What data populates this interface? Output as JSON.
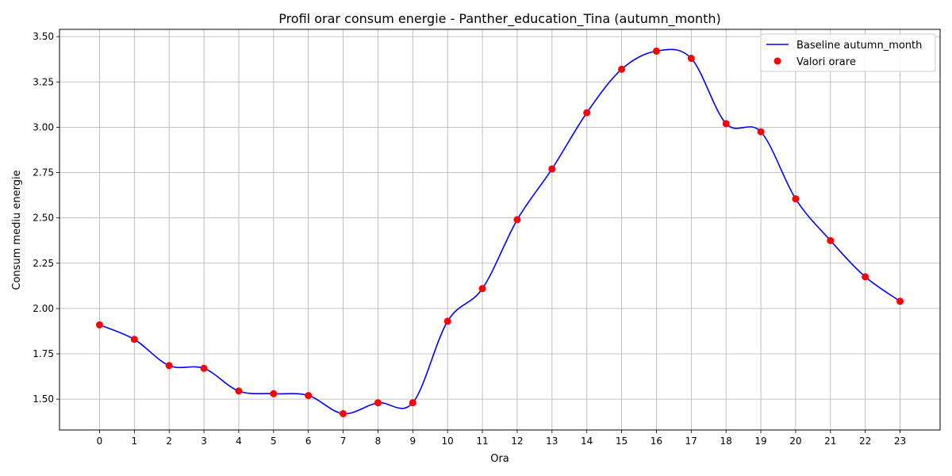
{
  "chart_data": {
    "type": "line",
    "title": "Profil orar consum energie - Panther_education_Tina (autumn_month)",
    "xlabel": "Ora",
    "ylabel": "Consum mediu energie",
    "x": [
      0,
      1,
      2,
      3,
      4,
      5,
      6,
      7,
      8,
      9,
      10,
      11,
      12,
      13,
      14,
      15,
      16,
      17,
      18,
      19,
      20,
      21,
      22,
      23
    ],
    "xlim": [
      -1.15,
      24.15
    ],
    "ylim": [
      1.33,
      3.54
    ],
    "yticks": [
      1.5,
      1.75,
      2.0,
      2.25,
      2.5,
      2.75,
      3.0,
      3.25,
      3.5
    ],
    "grid": true,
    "legend_position": "top-right",
    "series": [
      {
        "name": "Baseline autumn_month",
        "kind": "line",
        "color": "#0000ff",
        "values": [
          1.91,
          1.83,
          1.685,
          1.67,
          1.545,
          1.53,
          1.52,
          1.42,
          1.48,
          1.48,
          1.93,
          2.11,
          2.49,
          2.77,
          3.08,
          3.32,
          3.42,
          3.38,
          3.02,
          2.975,
          2.605,
          2.375,
          2.175,
          2.04
        ]
      },
      {
        "name": "Valori orare",
        "kind": "scatter",
        "color": "#ff0000",
        "values": [
          1.91,
          1.83,
          1.685,
          1.67,
          1.545,
          1.53,
          1.52,
          1.42,
          1.48,
          1.48,
          1.93,
          2.11,
          2.49,
          2.77,
          3.08,
          3.32,
          3.42,
          3.38,
          3.02,
          2.975,
          2.605,
          2.375,
          2.175,
          2.04
        ]
      }
    ]
  }
}
